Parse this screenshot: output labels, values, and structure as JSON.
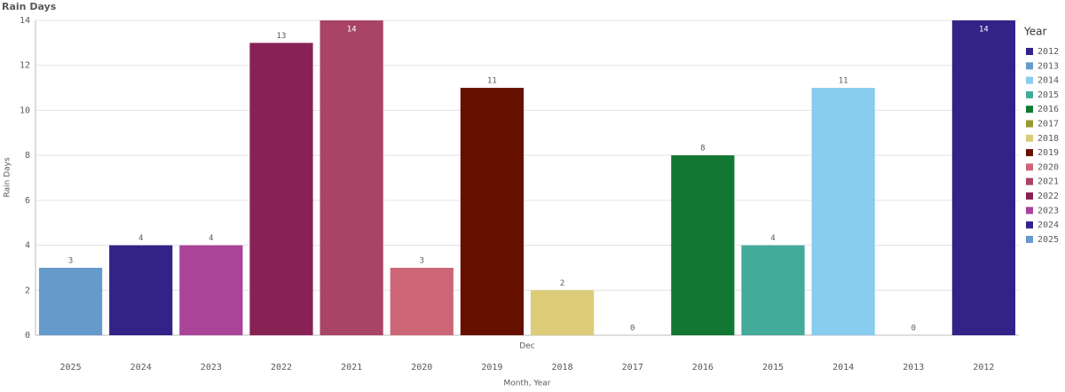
{
  "chart_data": {
    "type": "bar",
    "title": "Rain Days",
    "y_label": "Rain Days",
    "x_label": "Month, Year",
    "group_label": "Dec",
    "categories": [
      "2025",
      "2024",
      "2023",
      "2022",
      "2021",
      "2020",
      "2019",
      "2018",
      "2017",
      "2016",
      "2015",
      "2014",
      "2013",
      "2012"
    ],
    "values": [
      3,
      4,
      4,
      13,
      14,
      3,
      11,
      2,
      0,
      8,
      4,
      11,
      0,
      14
    ],
    "ylim": [
      0,
      14
    ],
    "yticks": [
      0,
      2,
      4,
      6,
      8,
      10,
      12,
      14
    ],
    "grid": true,
    "legend": {
      "title": "Year",
      "position": "right",
      "items": [
        {
          "name": "2012",
          "color": "#332288"
        },
        {
          "name": "2013",
          "color": "#6699cc"
        },
        {
          "name": "2014",
          "color": "#88ccee"
        },
        {
          "name": "2015",
          "color": "#44aa99"
        },
        {
          "name": "2016",
          "color": "#117733"
        },
        {
          "name": "2017",
          "color": "#999933"
        },
        {
          "name": "2018",
          "color": "#ddcc77"
        },
        {
          "name": "2019",
          "color": "#661100"
        },
        {
          "name": "2020",
          "color": "#cc6677"
        },
        {
          "name": "2021",
          "color": "#aa4466"
        },
        {
          "name": "2022",
          "color": "#882255"
        },
        {
          "name": "2023",
          "color": "#aa4499"
        },
        {
          "name": "2024",
          "color": "#332288"
        },
        {
          "name": "2025",
          "color": "#6699cc"
        }
      ]
    }
  }
}
